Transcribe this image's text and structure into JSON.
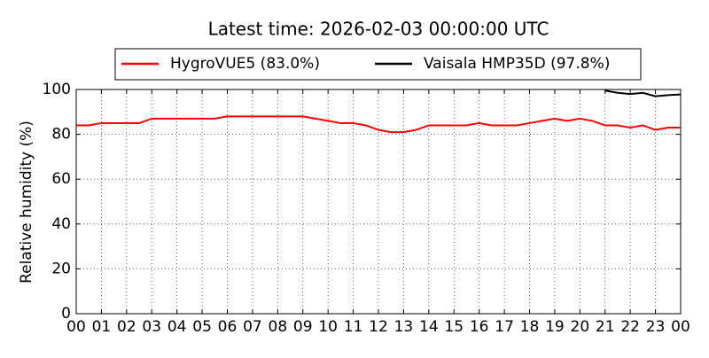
{
  "chart_data": {
    "type": "line",
    "title": "Latest time: 2026-02-03 00:00:00 UTC",
    "y_label": "Relative humidity (%)",
    "x": [
      0,
      0.5,
      1,
      1.5,
      2,
      2.5,
      3,
      3.5,
      4,
      4.5,
      5,
      5.5,
      6,
      6.5,
      7,
      7.5,
      8,
      8.5,
      9,
      9.5,
      10,
      10.5,
      11,
      11.5,
      12,
      12.5,
      13,
      13.5,
      14,
      14.5,
      15,
      15.5,
      16,
      16.5,
      17,
      17.5,
      18,
      18.5,
      19,
      19.5,
      20,
      20.5,
      21,
      21.5,
      22,
      22.5,
      23,
      23.5,
      24
    ],
    "series": [
      {
        "name": "HygroVUE5 (83.0%)",
        "color": "#ff0000",
        "values": [
          84,
          84,
          85,
          85,
          85,
          85,
          87,
          87,
          87,
          87,
          87,
          87,
          88,
          88,
          88,
          88,
          88,
          88,
          88,
          87,
          86,
          85,
          85,
          84,
          82,
          81,
          81,
          82,
          84,
          84,
          84,
          84,
          85,
          84,
          84,
          84,
          85,
          86,
          87,
          86,
          87,
          86,
          84,
          84,
          83,
          84,
          82,
          83,
          83
        ]
      },
      {
        "name": "Vaisala HMP35D (97.8%)",
        "color": "#000000",
        "values": [
          null,
          null,
          null,
          null,
          null,
          null,
          null,
          null,
          null,
          null,
          null,
          null,
          null,
          null,
          null,
          null,
          null,
          null,
          null,
          null,
          null,
          null,
          null,
          null,
          null,
          null,
          null,
          null,
          null,
          null,
          null,
          null,
          null,
          null,
          null,
          null,
          null,
          null,
          null,
          null,
          null,
          null,
          99.5,
          98.5,
          98,
          98.5,
          97,
          97.5,
          97.8
        ]
      }
    ],
    "xlim": [
      0,
      24
    ],
    "xticks": [
      {
        "value": 0,
        "label": "00"
      },
      {
        "value": 1,
        "label": "01"
      },
      {
        "value": 2,
        "label": "02"
      },
      {
        "value": 3,
        "label": "03"
      },
      {
        "value": 4,
        "label": "04"
      },
      {
        "value": 5,
        "label": "05"
      },
      {
        "value": 6,
        "label": "06"
      },
      {
        "value": 7,
        "label": "07"
      },
      {
        "value": 8,
        "label": "08"
      },
      {
        "value": 9,
        "label": "09"
      },
      {
        "value": 10,
        "label": "10"
      },
      {
        "value": 11,
        "label": "11"
      },
      {
        "value": 12,
        "label": "12"
      },
      {
        "value": 13,
        "label": "13"
      },
      {
        "value": 14,
        "label": "14"
      },
      {
        "value": 15,
        "label": "15"
      },
      {
        "value": 16,
        "label": "16"
      },
      {
        "value": 17,
        "label": "17"
      },
      {
        "value": 18,
        "label": "18"
      },
      {
        "value": 19,
        "label": "19"
      },
      {
        "value": 20,
        "label": "20"
      },
      {
        "value": 21,
        "label": "21"
      },
      {
        "value": 22,
        "label": "22"
      },
      {
        "value": 23,
        "label": "23"
      },
      {
        "value": 24,
        "label": "00"
      }
    ],
    "ylim": [
      0,
      100
    ],
    "yticks": [
      0,
      20,
      40,
      60,
      80,
      100
    ],
    "grid": true,
    "legend": "top"
  }
}
